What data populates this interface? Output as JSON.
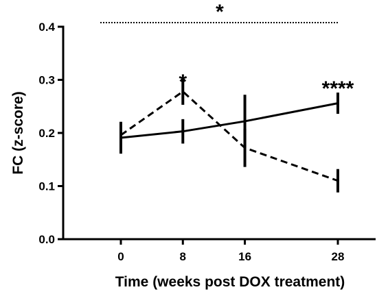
{
  "chart_data": {
    "type": "line",
    "title": "",
    "xlabel": "Time (weeks post DOX treatment)",
    "ylabel": "FC (z-score)",
    "ylim": [
      0,
      0.4
    ],
    "yticks": [
      "0.0",
      "0.1",
      "0.2",
      "0.3",
      "0.4"
    ],
    "ytick_values": [
      0,
      0.1,
      0.2,
      0.3,
      0.4
    ],
    "categories": [
      "0",
      "8",
      "16",
      "28"
    ],
    "x": [
      0,
      8,
      16,
      28
    ],
    "grid": false,
    "legend": "none",
    "series": [
      {
        "style": "solid",
        "values": [
          0.191,
          0.203,
          0.222,
          0.256
        ],
        "errors": [
          0.03,
          0.023,
          0.05,
          0.02
        ]
      },
      {
        "style": "dashed",
        "values": [
          0.196,
          0.278,
          0.172,
          0.11
        ],
        "errors": [
          0.018,
          0.025,
          0.036,
          0.022
        ]
      }
    ],
    "annotations": [
      {
        "text": "*",
        "x": 8,
        "y": 0.31
      },
      {
        "text": "****",
        "x": 28,
        "y": 0.297
      }
    ],
    "bracket": {
      "text": "*",
      "x_start": 0,
      "x_end": 28,
      "y": 0.41
    }
  }
}
